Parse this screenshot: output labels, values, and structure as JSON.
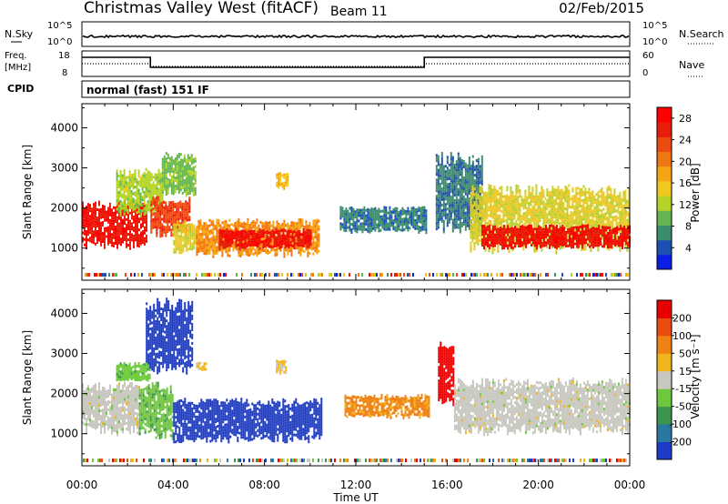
{
  "header": {
    "station": "Christmas Valley West (fitACF)",
    "beam": "Beam 11",
    "date": "02/Feb/2015"
  },
  "params": {
    "nsky_label": "N.Sky",
    "nsearch_label": "N.Search",
    "nsky_ticks": [
      "10^5",
      "10^0"
    ],
    "nsearch_ticks": [
      "10^5",
      "10^0"
    ],
    "freq_label_1": "Freq.",
    "freq_label_2": "[MHz]",
    "freq_ticks": [
      "18",
      "8"
    ],
    "nave_label": "Nave",
    "nave_ticks": [
      "60",
      "0"
    ],
    "cpid_label": "CPID",
    "cpid_value": "normal (fast) 151 IF"
  },
  "axes": {
    "ylabel": "Slant Range [km]",
    "xlabel": "Time UT",
    "xticks": [
      "00:00",
      "04:00",
      "08:00",
      "12:00",
      "16:00",
      "20:00",
      "00:00"
    ],
    "yticks": [
      "1000",
      "2000",
      "3000",
      "4000"
    ]
  },
  "colorbars": {
    "power": {
      "label": "Power [dB]",
      "ticks": [
        "4",
        "8",
        "12",
        "16",
        "20",
        "24",
        "28"
      ],
      "colors": [
        "#0a1ee6",
        "#1e50b4",
        "#3c8c6e",
        "#64b450",
        "#b4d228",
        "#f0c81e",
        "#f5a514",
        "#f07814",
        "#eb4b0f",
        "#e61e0a",
        "#ff0000"
      ]
    },
    "velocity": {
      "label": "Velocity [m s⁻¹]",
      "ticks": [
        "200",
        "100",
        "50",
        "15",
        "-15",
        "-50",
        "-100",
        "-200"
      ],
      "colors": [
        "#1e3cc8",
        "#2878a0",
        "#3c9650",
        "#6ec83c",
        "#c8c8c0",
        "#f0b41e",
        "#f08214",
        "#eb4b0f",
        "#e60000"
      ]
    }
  },
  "chart_data": [
    {
      "type": "heatmap",
      "title": "Power",
      "x_unit": "hours UT",
      "xlim": [
        0,
        24
      ],
      "ylim": [
        200,
        4600
      ],
      "colorbar_range": [
        0,
        30
      ],
      "regions": [
        {
          "t0": 0.0,
          "t1": 2.8,
          "r0": 1000,
          "r1": 2200,
          "value": 27
        },
        {
          "t0": 1.5,
          "t1": 3.5,
          "r0": 1800,
          "r1": 3000,
          "value": 12
        },
        {
          "t0": 3.0,
          "t1": 4.7,
          "r0": 1300,
          "r1": 2300,
          "value": 24
        },
        {
          "t0": 3.5,
          "t1": 5.0,
          "r0": 2300,
          "r1": 3400,
          "value": 10
        },
        {
          "t0": 4.0,
          "t1": 5.0,
          "r0": 900,
          "r1": 1700,
          "value": 14
        },
        {
          "t0": 5.0,
          "t1": 10.4,
          "r0": 800,
          "r1": 1750,
          "value": 19
        },
        {
          "t0": 6.0,
          "t1": 10.0,
          "r0": 1000,
          "r1": 1500,
          "value": 27
        },
        {
          "t0": 8.5,
          "t1": 9.0,
          "r0": 2500,
          "r1": 2900,
          "value": 16
        },
        {
          "t0": 11.3,
          "t1": 15.1,
          "r0": 1400,
          "r1": 2050,
          "value": 6
        },
        {
          "t0": 15.5,
          "t1": 17.5,
          "r0": 1400,
          "r1": 3400,
          "value": 6
        },
        {
          "t0": 17.0,
          "t1": 24.0,
          "r0": 900,
          "r1": 2600,
          "value": 14
        },
        {
          "t0": 17.5,
          "t1": 24.0,
          "r0": 1000,
          "r1": 1600,
          "value": 27
        }
      ]
    },
    {
      "type": "heatmap",
      "title": "Velocity",
      "x_unit": "hours UT",
      "xlim": [
        0,
        24
      ],
      "ylim": [
        200,
        4600
      ],
      "colorbar_range": [
        -200,
        200
      ],
      "regions": [
        {
          "t0": 0.0,
          "t1": 2.5,
          "r0": 1000,
          "r1": 2300,
          "value": 0
        },
        {
          "t0": 1.5,
          "t1": 3.0,
          "r0": 2300,
          "r1": 2800,
          "value": -50
        },
        {
          "t0": 2.5,
          "t1": 4.0,
          "r0": 900,
          "r1": 2300,
          "value": -50
        },
        {
          "t0": 2.8,
          "t1": 4.8,
          "r0": 2500,
          "r1": 4400,
          "value": -180
        },
        {
          "t0": 4.0,
          "t1": 10.5,
          "r0": 800,
          "r1": 1900,
          "value": -190
        },
        {
          "t0": 5.0,
          "t1": 5.4,
          "r0": 2600,
          "r1": 2800,
          "value": 30
        },
        {
          "t0": 8.5,
          "t1": 8.9,
          "r0": 2500,
          "r1": 2850,
          "value": 30
        },
        {
          "t0": 11.5,
          "t1": 15.2,
          "r0": 1400,
          "r1": 2000,
          "value": 80
        },
        {
          "t0": 15.6,
          "t1": 16.3,
          "r0": 1700,
          "r1": 3300,
          "value": 180
        },
        {
          "t0": 16.3,
          "t1": 24.0,
          "r0": 1000,
          "r1": 2400,
          "value": 0
        }
      ]
    }
  ]
}
